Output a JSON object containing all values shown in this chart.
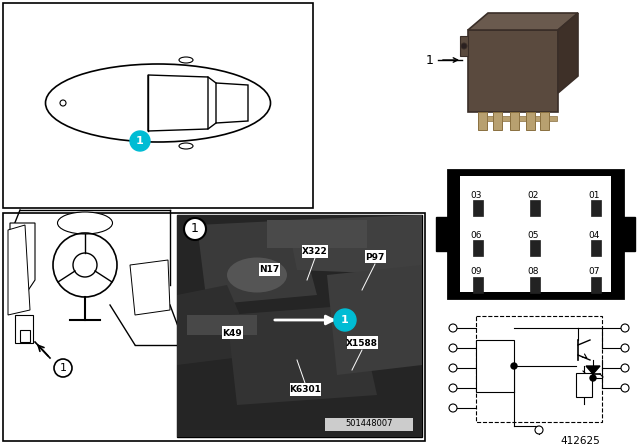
{
  "bg_color": "#ffffff",
  "cyan_color": "#00bcd4",
  "part_number": "412625",
  "image_number": "501448007",
  "pin_labels": [
    [
      "03",
      "02",
      "01"
    ],
    [
      "06",
      "05",
      "04"
    ],
    [
      "09",
      "08",
      "07"
    ]
  ]
}
